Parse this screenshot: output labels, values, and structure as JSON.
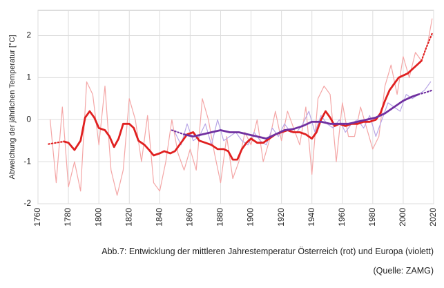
{
  "chart_data": {
    "type": "line",
    "ylabel": "Abweichung der jährlichen Temperatur [°C]",
    "caption": "Abb.7: Entwicklung der mittleren Jahrestemperatur Österreich (rot) und Europa (violett)",
    "source": "(Quelle: ZAMG)",
    "xlim": [
      1760,
      2020
    ],
    "xticks": [
      1760,
      1780,
      1800,
      1820,
      1840,
      1860,
      1880,
      1900,
      1920,
      1940,
      1960,
      1980,
      2000,
      2020
    ],
    "ylim": [
      -2,
      2.6
    ],
    "yticks": [
      -2,
      -1,
      0,
      1,
      2
    ],
    "grid": true,
    "series": [
      {
        "color": "#f4a6a6",
        "linestyle": "thin",
        "x": [
          1768,
          1772,
          1776,
          1780,
          1784,
          1788,
          1792,
          1796,
          1800,
          1804,
          1808,
          1812,
          1816,
          1820,
          1824,
          1828,
          1832,
          1836,
          1840,
          1844,
          1848,
          1852,
          1856,
          1860,
          1864,
          1868,
          1872,
          1876,
          1880,
          1884,
          1888,
          1892,
          1896,
          1900,
          1904,
          1908,
          1912,
          1916,
          1920,
          1924,
          1928,
          1932,
          1936,
          1940,
          1944,
          1948,
          1952,
          1956,
          1960,
          1964,
          1968,
          1972,
          1976,
          1980,
          1984,
          1988,
          1992,
          1996,
          2000,
          2004,
          2008,
          2012,
          2016,
          2019
        ],
        "values": [
          0.0,
          -1.5,
          0.3,
          -1.6,
          -1.0,
          -1.7,
          0.9,
          0.6,
          -0.6,
          0.8,
          -1.2,
          -1.8,
          -1.2,
          0.5,
          0.0,
          -1.0,
          0.1,
          -1.5,
          -1.7,
          -1.0,
          0.0,
          -0.8,
          -1.2,
          -0.7,
          -1.2,
          0.5,
          0.0,
          -0.8,
          -1.5,
          -0.4,
          -1.4,
          -1.0,
          -0.3,
          -0.6,
          0.0,
          -1.0,
          -0.5,
          0.2,
          -0.5,
          0.2,
          -0.2,
          -0.6,
          0.3,
          -1.3,
          0.5,
          0.8,
          0.6,
          -1.0,
          0.4,
          -0.4,
          -0.4,
          0.3,
          -0.2,
          -0.7,
          -0.4,
          0.8,
          1.3,
          0.6,
          1.5,
          1.0,
          1.6,
          1.4,
          1.8,
          2.4
        ]
      },
      {
        "color": "#b8a6e6",
        "linestyle": "thin",
        "x": [
          1850,
          1854,
          1858,
          1862,
          1866,
          1870,
          1874,
          1878,
          1882,
          1886,
          1890,
          1894,
          1898,
          1902,
          1906,
          1910,
          1914,
          1918,
          1922,
          1926,
          1930,
          1934,
          1938,
          1942,
          1946,
          1950,
          1954,
          1958,
          1962,
          1966,
          1970,
          1974,
          1978,
          1982,
          1986,
          1990,
          1994,
          1998,
          2002,
          2006,
          2010,
          2014,
          2018
        ],
        "values": [
          -0.3,
          -0.6,
          -0.1,
          -0.5,
          -0.4,
          -0.1,
          -0.6,
          0.0,
          -0.5,
          -0.4,
          -0.3,
          -0.5,
          -0.6,
          -0.3,
          -0.5,
          -0.6,
          -0.2,
          -0.4,
          -0.1,
          -0.3,
          -0.3,
          -0.1,
          0.2,
          -0.3,
          0.1,
          -0.1,
          -0.2,
          0.0,
          -0.3,
          -0.1,
          0.0,
          -0.2,
          0.1,
          -0.4,
          0.0,
          0.4,
          0.3,
          0.2,
          0.6,
          0.5,
          0.6,
          0.7,
          0.9
        ]
      },
      {
        "color": "#e02020",
        "linestyle": "dotted",
        "x": [
          1767,
          1772,
          1777
        ],
        "values": [
          -0.58,
          -0.55,
          -0.52
        ]
      },
      {
        "color": "#e02020",
        "linestyle": "thick",
        "x": [
          1777,
          1780,
          1784,
          1788,
          1791,
          1794,
          1797,
          1800,
          1804,
          1807,
          1810,
          1813,
          1816,
          1820,
          1823,
          1826,
          1830,
          1833,
          1836,
          1840,
          1843,
          1847,
          1850,
          1854,
          1858,
          1862,
          1866,
          1870,
          1874,
          1878,
          1882,
          1885,
          1888,
          1891,
          1894,
          1897,
          1900,
          1904,
          1908,
          1912,
          1916,
          1920,
          1924,
          1928,
          1932,
          1936,
          1940,
          1943,
          1946,
          1949,
          1952,
          1955,
          1958,
          1962,
          1966,
          1970,
          1974,
          1978,
          1982,
          1985,
          1988,
          1991,
          1994,
          1997,
          2000,
          2003,
          2006,
          2009,
          2012
        ],
        "values": [
          -0.52,
          -0.55,
          -0.72,
          -0.5,
          0.05,
          0.2,
          0.05,
          -0.2,
          -0.25,
          -0.4,
          -0.65,
          -0.45,
          -0.1,
          -0.1,
          -0.2,
          -0.5,
          -0.6,
          -0.72,
          -0.85,
          -0.8,
          -0.75,
          -0.8,
          -0.75,
          -0.55,
          -0.35,
          -0.3,
          -0.5,
          -0.55,
          -0.6,
          -0.7,
          -0.7,
          -0.75,
          -0.95,
          -0.95,
          -0.7,
          -0.55,
          -0.45,
          -0.55,
          -0.55,
          -0.45,
          -0.35,
          -0.3,
          -0.25,
          -0.3,
          -0.3,
          -0.35,
          -0.45,
          -0.3,
          0.0,
          0.2,
          0.05,
          -0.15,
          -0.1,
          -0.15,
          -0.1,
          -0.1,
          -0.05,
          -0.05,
          0.0,
          0.15,
          0.45,
          0.7,
          0.85,
          1.0,
          1.05,
          1.1,
          1.2,
          1.3,
          1.4
        ]
      },
      {
        "color": "#e02020",
        "linestyle": "dotted",
        "x": [
          2012,
          2015,
          2019
        ],
        "values": [
          1.4,
          1.7,
          2.05
        ]
      },
      {
        "color": "#7030a0",
        "linestyle": "dotted",
        "x": [
          1848,
          1852,
          1856
        ],
        "values": [
          -0.25,
          -0.3,
          -0.35
        ]
      },
      {
        "color": "#7030a0",
        "linestyle": "thick",
        "x": [
          1856,
          1862,
          1868,
          1874,
          1880,
          1886,
          1892,
          1898,
          1904,
          1910,
          1916,
          1922,
          1928,
          1934,
          1940,
          1946,
          1952,
          1958,
          1964,
          1970,
          1976,
          1982,
          1988,
          1994,
          2000,
          2006,
          2010
        ],
        "values": [
          -0.35,
          -0.4,
          -0.35,
          -0.3,
          -0.25,
          -0.3,
          -0.3,
          -0.35,
          -0.4,
          -0.45,
          -0.35,
          -0.25,
          -0.22,
          -0.15,
          -0.05,
          -0.05,
          -0.1,
          -0.1,
          -0.1,
          -0.05,
          0.0,
          0.05,
          0.15,
          0.3,
          0.45,
          0.55,
          0.6
        ]
      },
      {
        "color": "#7030a0",
        "linestyle": "dotted",
        "x": [
          2010,
          2015,
          2019
        ],
        "values": [
          0.6,
          0.65,
          0.7
        ]
      }
    ]
  }
}
